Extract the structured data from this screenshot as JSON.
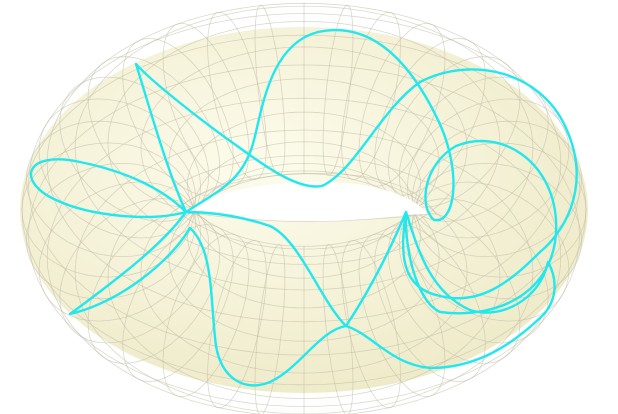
{
  "colors": {
    "background": "#ffffff",
    "torus_fill": "#faf8e0",
    "torus_shade": "#ece8c4",
    "mesh": "#bdbaa6",
    "hole": "#ffffff",
    "curve": "#22e8ee"
  },
  "surface": {
    "kind": "torus",
    "style": "translucent with wireframe mesh",
    "meridian_count": 36,
    "parallel_count": 16
  },
  "curve": {
    "kind": "closed curve winding around the torus"
  }
}
